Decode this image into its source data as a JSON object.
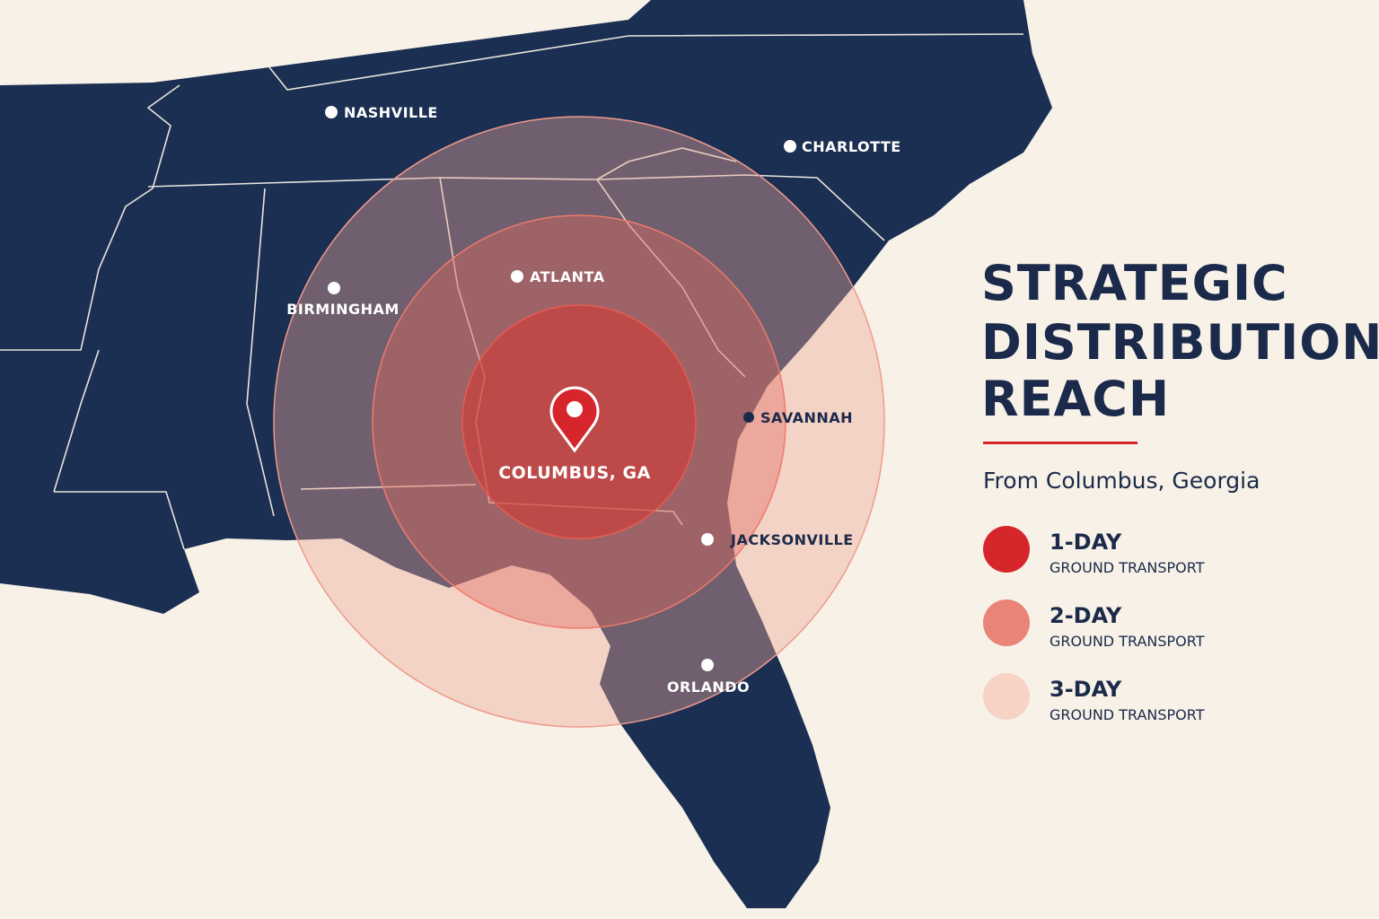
{
  "header": {
    "title_lines": [
      "STRATEGIC",
      "DISTRIBUTION",
      "REACH"
    ],
    "subtitle": "From Columbus, Georgia"
  },
  "legend": [
    {
      "label": "1-DAY",
      "sublabel": "GROUND TRANSPORT"
    },
    {
      "label": "2-DAY",
      "sublabel": "GROUND TRANSPORT"
    },
    {
      "label": "3-DAY",
      "sublabel": "GROUND TRANSPORT"
    }
  ],
  "center": {
    "label": "COLUMBUS, GA"
  },
  "cities": [
    "NASHVILLE",
    "CHARLOTTE",
    "ATLANTA",
    "BIRMINGHAM",
    "SAVANNAH",
    "JACKSONVILLE",
    "ORLANDO"
  ]
}
